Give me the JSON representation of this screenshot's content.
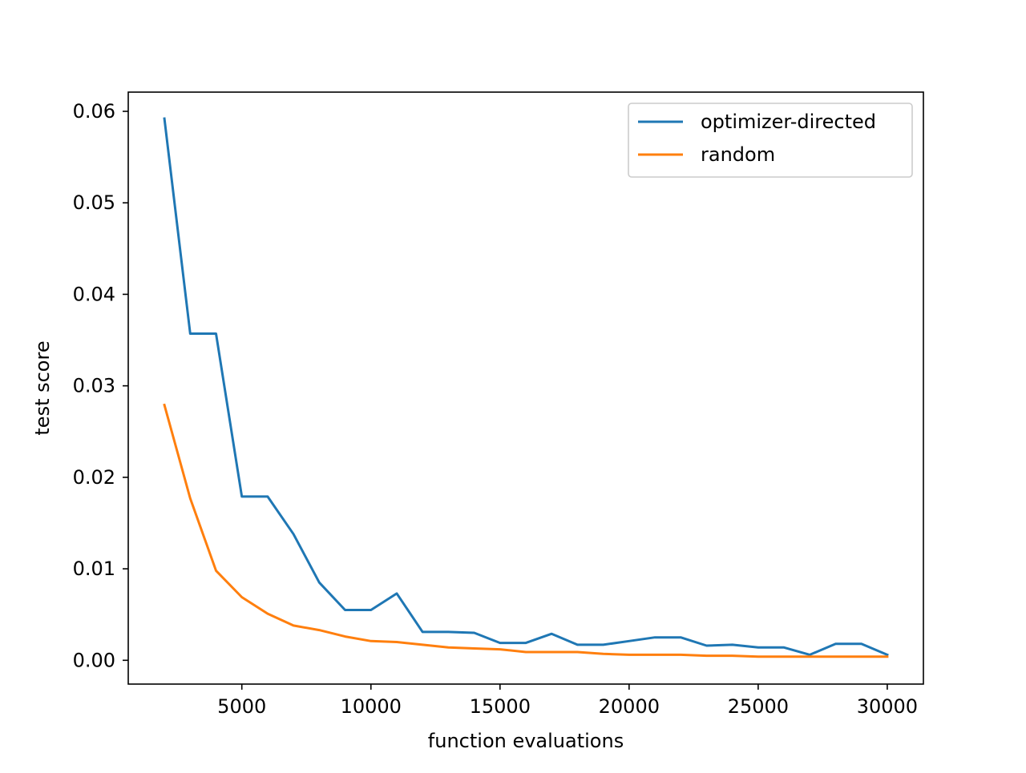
{
  "chart_data": {
    "type": "line",
    "title": "",
    "xlabel": "function evaluations",
    "ylabel": "test score",
    "xlim": [
      600,
      31400
    ],
    "ylim": [
      -0.0026,
      0.0621
    ],
    "x_ticks": [
      5000,
      10000,
      15000,
      20000,
      25000,
      30000
    ],
    "x_tick_labels": [
      "5000",
      "10000",
      "15000",
      "20000",
      "25000",
      "30000"
    ],
    "y_ticks": [
      0.0,
      0.01,
      0.02,
      0.03,
      0.04,
      0.05,
      0.06
    ],
    "y_tick_labels": [
      "0.00",
      "0.01",
      "0.02",
      "0.03",
      "0.04",
      "0.05",
      "0.06"
    ],
    "grid": false,
    "legend_position": "top-right",
    "x": [
      2000,
      3000,
      4000,
      5000,
      6000,
      7000,
      8000,
      9000,
      10000,
      11000,
      12000,
      13000,
      14000,
      15000,
      16000,
      17000,
      18000,
      19000,
      20000,
      21000,
      22000,
      23000,
      24000,
      25000,
      26000,
      27000,
      28000,
      29000,
      30000
    ],
    "series": [
      {
        "name": "optimizer-directed",
        "color": "#1f77b4",
        "values": [
          0.0592,
          0.0357,
          0.0357,
          0.0179,
          0.0179,
          0.0138,
          0.0085,
          0.0055,
          0.0055,
          0.0073,
          0.0031,
          0.0031,
          0.003,
          0.0019,
          0.0019,
          0.0029,
          0.0017,
          0.0017,
          0.0021,
          0.0025,
          0.0025,
          0.0016,
          0.0017,
          0.0014,
          0.0014,
          0.0006,
          0.0018,
          0.0018,
          0.0006
        ]
      },
      {
        "name": "random",
        "color": "#ff7f0e",
        "values": [
          0.0279,
          0.0177,
          0.0098,
          0.0069,
          0.0051,
          0.0038,
          0.0033,
          0.0026,
          0.0021,
          0.002,
          0.0017,
          0.0014,
          0.0013,
          0.0012,
          0.0009,
          0.0009,
          0.0009,
          0.0007,
          0.0006,
          0.0006,
          0.0006,
          0.0005,
          0.0005,
          0.0004,
          0.0004,
          0.0004,
          0.0004,
          0.0004,
          0.0004
        ]
      }
    ]
  }
}
